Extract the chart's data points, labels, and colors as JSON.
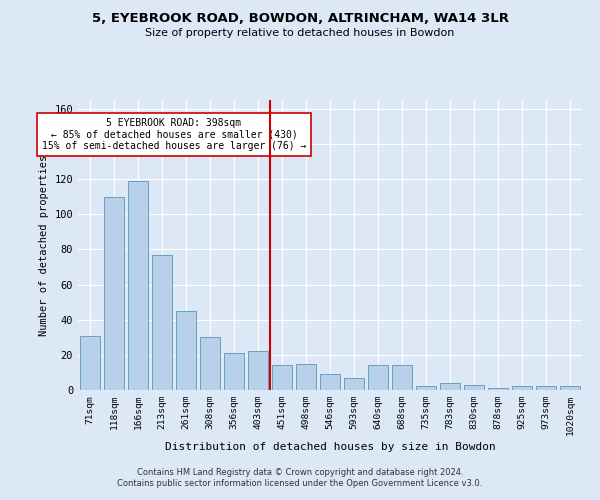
{
  "title_line1": "5, EYEBROOK ROAD, BOWDON, ALTRINCHAM, WA14 3LR",
  "title_line2": "Size of property relative to detached houses in Bowdon",
  "xlabel": "Distribution of detached houses by size in Bowdon",
  "ylabel": "Number of detached properties",
  "categories": [
    "71sqm",
    "118sqm",
    "166sqm",
    "213sqm",
    "261sqm",
    "308sqm",
    "356sqm",
    "403sqm",
    "451sqm",
    "498sqm",
    "546sqm",
    "593sqm",
    "640sqm",
    "688sqm",
    "735sqm",
    "783sqm",
    "830sqm",
    "878sqm",
    "925sqm",
    "973sqm",
    "1020sqm"
  ],
  "values": [
    31,
    110,
    119,
    77,
    45,
    30,
    21,
    22,
    14,
    15,
    9,
    7,
    14,
    14,
    2,
    4,
    3,
    1,
    2,
    2,
    2
  ],
  "bar_color": "#b8d0ea",
  "bar_edge_color": "#6a9fc0",
  "vline_x": 7.5,
  "vline_color": "#cc0000",
  "annotation_text": "5 EYEBROOK ROAD: 398sqm\n← 85% of detached houses are smaller (430)\n15% of semi-detached houses are larger (76) →",
  "annotation_box_color": "#ffffff",
  "annotation_box_edge": "#cc0000",
  "ylim": [
    0,
    165
  ],
  "yticks": [
    0,
    20,
    40,
    60,
    80,
    100,
    120,
    140,
    160
  ],
  "footnote": "Contains HM Land Registry data © Crown copyright and database right 2024.\nContains public sector information licensed under the Open Government Licence v3.0.",
  "bg_color": "#dce8f5",
  "plot_bg_color": "#dce8f5"
}
